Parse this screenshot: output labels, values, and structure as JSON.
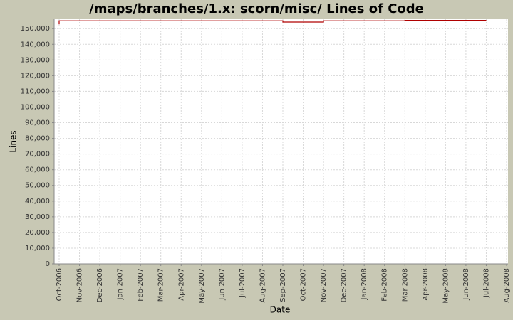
{
  "chart_data": {
    "type": "line",
    "title": "/maps/branches/1.x: scorn/misc/ Lines of Code",
    "y_label": "Lines",
    "x_label": "Date",
    "ylim": [
      0,
      156000
    ],
    "yticks": [
      0,
      {
        "value": 10000,
        "label": "10,000"
      },
      {
        "value": 20000,
        "label": "20,000"
      },
      {
        "value": 30000,
        "label": "30,000"
      },
      {
        "value": 40000,
        "label": "40,000"
      },
      {
        "value": 50000,
        "label": "50,000"
      },
      {
        "value": 60000,
        "label": "60,000"
      },
      {
        "value": 70000,
        "label": "70,000"
      },
      {
        "value": 80000,
        "label": "80,000"
      },
      {
        "value": 90000,
        "label": "90,000"
      },
      {
        "value": 100000,
        "label": "100,000"
      },
      {
        "value": 110000,
        "label": "110,000"
      },
      {
        "value": 120000,
        "label": "120,000"
      },
      {
        "value": 130000,
        "label": "130,000"
      },
      {
        "value": 140000,
        "label": "140,000"
      },
      {
        "value": 150000,
        "label": "150,000"
      }
    ],
    "xticks": [
      "Oct-2006",
      "Nov-2006",
      "Dec-2006",
      "Jan-2007",
      "Feb-2007",
      "Mar-2007",
      "Apr-2007",
      "May-2007",
      "Jun-2007",
      "Jul-2007",
      "Aug-2007",
      "Sep-2007",
      "Oct-2007",
      "Nov-2007",
      "Dec-2007",
      "Jan-2008",
      "Feb-2008",
      "Mar-2008",
      "Apr-2008",
      "May-2008",
      "Jun-2008",
      "Jul-2008",
      "Aug-2008"
    ],
    "grid": true,
    "step": true,
    "series": [
      {
        "color": "#b00000",
        "x": [
          "Oct-2006",
          "Oct-2006",
          "Sep-2007",
          "Nov-2007",
          "Mar-2008",
          "Jul-2008"
        ],
        "values": [
          152700,
          155000,
          154200,
          155000,
          155300,
          155300
        ]
      }
    ]
  }
}
